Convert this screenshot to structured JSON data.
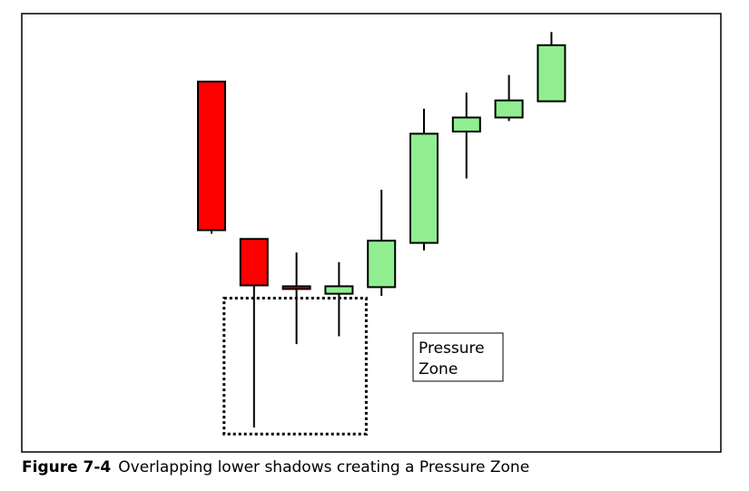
{
  "caption": {
    "figure_number": "Figure 7-4",
    "text": "Overlapping lower shadows creating a Pressure Zone"
  },
  "chart_data": {
    "type": "candlestick",
    "title": "",
    "xlabel": "",
    "ylabel": "",
    "grid": false,
    "ylim": [
      0,
      100
    ],
    "colors": {
      "down": "#ff0000",
      "up": "#90ee90",
      "outline": "#000000"
    },
    "candles": [
      {
        "direction": "down",
        "open": 84.5,
        "close": 50.6,
        "high": 84.5,
        "low": 49.8
      },
      {
        "direction": "down",
        "open": 48.6,
        "close": 38.0,
        "high": 48.6,
        "low": 5.6
      },
      {
        "direction": "down",
        "open": 37.8,
        "close": 37.2,
        "high": 45.5,
        "low": 24.6
      },
      {
        "direction": "up",
        "open": 36.1,
        "close": 37.8,
        "high": 43.3,
        "low": 26.4
      },
      {
        "direction": "up",
        "open": 37.6,
        "close": 48.2,
        "high": 59.8,
        "low": 35.6
      },
      {
        "direction": "up",
        "open": 47.7,
        "close": 72.6,
        "high": 78.3,
        "low": 46.0
      },
      {
        "direction": "up",
        "open": 73.1,
        "close": 76.3,
        "high": 82.0,
        "low": 62.4
      },
      {
        "direction": "up",
        "open": 76.3,
        "close": 80.2,
        "high": 86.0,
        "low": 75.5
      },
      {
        "direction": "up",
        "open": 80.0,
        "close": 92.8,
        "high": 95.8,
        "low": 80.0
      }
    ],
    "annotations": [
      {
        "type": "label-box",
        "lines": [
          "Pressure",
          "Zone"
        ]
      },
      {
        "type": "dotted-box",
        "covers_candles": [
          1,
          3
        ],
        "y_top": 35.1,
        "y_bottom": 4.1
      }
    ]
  }
}
